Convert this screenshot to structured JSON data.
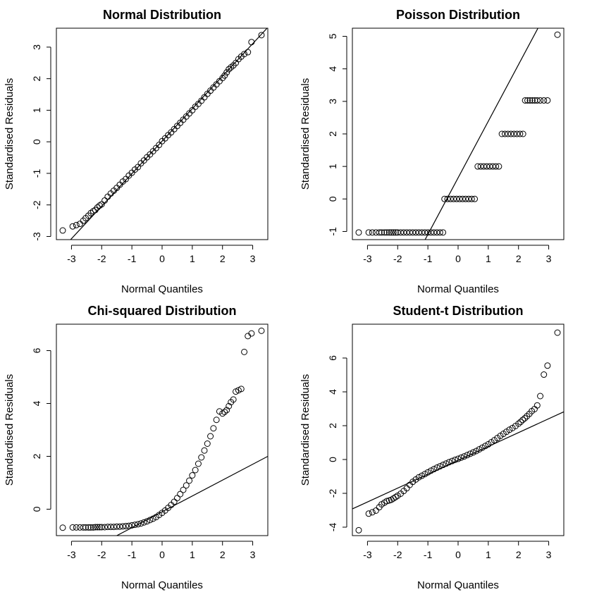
{
  "chart_data": [
    {
      "type": "scatter",
      "title": "Normal Distribution",
      "xlabel": "Normal Quantiles",
      "ylabel": "Standardised Residuals",
      "xlim": [
        -3.5,
        3.5
      ],
      "ylim": [
        -3.1,
        3.6
      ],
      "xticks": [
        -3,
        -2,
        -1,
        0,
        1,
        2,
        3
      ],
      "yticks": [
        -3,
        -2,
        -1,
        0,
        1,
        2,
        3
      ],
      "legend": "none",
      "reference_line": {
        "intercept": 0.02,
        "slope": 1.03
      },
      "series": [
        {
          "x": [
            -3.29,
            -2.96,
            -2.84,
            -2.72,
            -2.61,
            -2.53,
            -2.44,
            -2.36,
            -2.28,
            -2.21,
            -2.14,
            -2.07,
            -2.0,
            -1.9,
            -1.8,
            -1.7,
            -1.6,
            -1.5,
            -1.4,
            -1.3,
            -1.2,
            -1.1,
            -1.0,
            -0.9,
            -0.8,
            -0.7,
            -0.6,
            -0.5,
            -0.4,
            -0.3,
            -0.2,
            -0.1,
            0.0,
            0.1,
            0.2,
            0.3,
            0.4,
            0.5,
            0.6,
            0.7,
            0.8,
            0.9,
            1.0,
            1.1,
            1.2,
            1.3,
            1.4,
            1.5,
            1.6,
            1.7,
            1.8,
            1.9,
            2.0,
            2.07,
            2.14,
            2.21,
            2.28,
            2.36,
            2.44,
            2.53,
            2.62,
            2.72,
            2.84,
            2.96,
            3.29
          ],
          "y": [
            -2.81,
            -2.68,
            -2.64,
            -2.6,
            -2.5,
            -2.42,
            -2.34,
            -2.26,
            -2.2,
            -2.16,
            -2.08,
            -2.02,
            -1.98,
            -1.86,
            -1.74,
            -1.64,
            -1.55,
            -1.46,
            -1.36,
            -1.26,
            -1.18,
            -1.07,
            -0.98,
            -0.88,
            -0.8,
            -0.68,
            -0.59,
            -0.49,
            -0.4,
            -0.3,
            -0.2,
            -0.1,
            0.02,
            0.11,
            0.21,
            0.3,
            0.4,
            0.5,
            0.6,
            0.7,
            0.8,
            0.9,
            1.0,
            1.11,
            1.2,
            1.3,
            1.41,
            1.52,
            1.62,
            1.72,
            1.82,
            1.92,
            2.02,
            2.1,
            2.2,
            2.3,
            2.36,
            2.42,
            2.5,
            2.62,
            2.7,
            2.78,
            2.84,
            3.16,
            3.38
          ]
        }
      ]
    },
    {
      "type": "scatter",
      "title": "Poisson Distribution",
      "xlabel": "Normal Quantiles",
      "ylabel": "Standardised Residuals",
      "xlim": [
        -3.5,
        3.5
      ],
      "ylim": [
        -1.25,
        5.25
      ],
      "xticks": [
        -3,
        -2,
        -1,
        0,
        1,
        2,
        3
      ],
      "yticks": [
        -1,
        0,
        1,
        2,
        3,
        4,
        5
      ],
      "legend": "none",
      "reference_line": {
        "intercept": 0.65,
        "slope": 1.74
      },
      "series": [
        {
          "x": [
            -3.29,
            -2.96,
            -2.84,
            -2.72,
            -2.61,
            -2.53,
            -2.44,
            -2.36,
            -2.28,
            -2.21,
            -2.14,
            -2.07,
            -2.0,
            -1.9,
            -1.8,
            -1.7,
            -1.6,
            -1.5,
            -1.4,
            -1.3,
            -1.2,
            -1.1,
            -1.0,
            -0.9,
            -0.8,
            -0.7,
            -0.6,
            -0.5,
            -0.45,
            -0.35,
            -0.25,
            -0.15,
            -0.05,
            0.05,
            0.15,
            0.25,
            0.35,
            0.45,
            0.55,
            0.65,
            0.75,
            0.85,
            0.95,
            1.05,
            1.15,
            1.25,
            1.35,
            1.45,
            1.55,
            1.65,
            1.75,
            1.85,
            1.95,
            2.05,
            2.15,
            2.22,
            2.3,
            2.38,
            2.46,
            2.54,
            2.62,
            2.72,
            2.84,
            2.96,
            3.29
          ],
          "y": [
            -1.03,
            -1.03,
            -1.03,
            -1.03,
            -1.03,
            -1.03,
            -1.03,
            -1.03,
            -1.03,
            -1.03,
            -1.03,
            -1.03,
            -1.03,
            -1.03,
            -1.03,
            -1.03,
            -1.03,
            -1.03,
            -1.03,
            -1.03,
            -1.03,
            -1.03,
            -1.03,
            -1.03,
            -1.03,
            -1.03,
            -1.03,
            -1.03,
            0.0,
            0.0,
            0.0,
            0.0,
            0.0,
            0.0,
            0.0,
            0.0,
            0.0,
            0.0,
            0.0,
            1.0,
            1.0,
            1.0,
            1.0,
            1.0,
            1.0,
            1.0,
            1.0,
            2.0,
            2.0,
            2.0,
            2.0,
            2.0,
            2.0,
            2.0,
            2.0,
            3.03,
            3.03,
            3.03,
            3.03,
            3.03,
            3.03,
            3.03,
            3.03,
            3.03,
            5.05
          ]
        }
      ]
    },
    {
      "type": "scatter",
      "title": "Chi-squared Distribution",
      "xlabel": "Normal Quantiles",
      "ylabel": "Standardised Residuals",
      "xlim": [
        -3.5,
        3.5
      ],
      "ylim": [
        -1.0,
        7.0
      ],
      "xticks": [
        -3,
        -2,
        -1,
        0,
        1,
        2,
        3
      ],
      "yticks": [
        0,
        2,
        4,
        6
      ],
      "legend": "none",
      "reference_line": {
        "intercept": -0.1,
        "slope": 0.6
      },
      "series": [
        {
          "x": [
            -3.29,
            -2.96,
            -2.84,
            -2.72,
            -2.61,
            -2.53,
            -2.44,
            -2.36,
            -2.28,
            -2.21,
            -2.14,
            -2.07,
            -2.0,
            -1.9,
            -1.8,
            -1.7,
            -1.6,
            -1.5,
            -1.4,
            -1.3,
            -1.2,
            -1.1,
            -1.0,
            -0.9,
            -0.8,
            -0.7,
            -0.6,
            -0.5,
            -0.4,
            -0.3,
            -0.2,
            -0.1,
            0.0,
            0.1,
            0.2,
            0.3,
            0.4,
            0.5,
            0.6,
            0.7,
            0.8,
            0.9,
            1.0,
            1.1,
            1.2,
            1.3,
            1.4,
            1.5,
            1.6,
            1.7,
            1.8,
            1.9,
            2.0,
            2.07,
            2.14,
            2.21,
            2.28,
            2.36,
            2.44,
            2.53,
            2.62,
            2.72,
            2.84,
            2.96,
            3.29
          ],
          "y": [
            -0.7,
            -0.69,
            -0.69,
            -0.69,
            -0.69,
            -0.69,
            -0.69,
            -0.69,
            -0.69,
            -0.68,
            -0.68,
            -0.68,
            -0.68,
            -0.68,
            -0.67,
            -0.67,
            -0.67,
            -0.66,
            -0.66,
            -0.65,
            -0.64,
            -0.63,
            -0.61,
            -0.59,
            -0.57,
            -0.54,
            -0.5,
            -0.46,
            -0.41,
            -0.36,
            -0.3,
            -0.22,
            -0.14,
            -0.05,
            0.05,
            0.16,
            0.28,
            0.42,
            0.57,
            0.73,
            0.9,
            1.08,
            1.28,
            1.48,
            1.72,
            1.96,
            2.22,
            2.48,
            2.76,
            3.06,
            3.38,
            3.7,
            3.62,
            3.68,
            3.75,
            3.9,
            4.05,
            4.15,
            4.45,
            4.5,
            4.55,
            5.95,
            6.55,
            6.65,
            6.75
          ]
        }
      ]
    },
    {
      "type": "scatter",
      "title": "Student-t Distribution",
      "xlabel": "Normal Quantiles",
      "ylabel": "Standardised Residuals",
      "xlim": [
        -3.5,
        3.5
      ],
      "ylim": [
        -4.5,
        8.0
      ],
      "xticks": [
        -3,
        -2,
        -1,
        0,
        1,
        2,
        3
      ],
      "yticks": [
        -4,
        -2,
        0,
        2,
        4,
        6
      ],
      "legend": "none",
      "reference_line": {
        "intercept": -0.05,
        "slope": 0.82
      },
      "series": [
        {
          "x": [
            -3.29,
            -2.96,
            -2.84,
            -2.72,
            -2.61,
            -2.53,
            -2.44,
            -2.36,
            -2.28,
            -2.21,
            -2.14,
            -2.07,
            -2.0,
            -1.9,
            -1.8,
            -1.7,
            -1.6,
            -1.5,
            -1.4,
            -1.3,
            -1.2,
            -1.1,
            -1.0,
            -0.9,
            -0.8,
            -0.7,
            -0.6,
            -0.5,
            -0.4,
            -0.3,
            -0.2,
            -0.1,
            0.0,
            0.1,
            0.2,
            0.3,
            0.4,
            0.5,
            0.6,
            0.7,
            0.8,
            0.9,
            1.0,
            1.1,
            1.2,
            1.3,
            1.4,
            1.5,
            1.6,
            1.7,
            1.8,
            1.9,
            2.0,
            2.07,
            2.14,
            2.21,
            2.28,
            2.36,
            2.44,
            2.53,
            2.62,
            2.72,
            2.84,
            2.96,
            3.29
          ],
          "y": [
            -4.18,
            -3.2,
            -3.12,
            -3.02,
            -2.82,
            -2.65,
            -2.55,
            -2.46,
            -2.42,
            -2.38,
            -2.3,
            -2.22,
            -2.14,
            -2.02,
            -1.86,
            -1.7,
            -1.5,
            -1.32,
            -1.18,
            -1.05,
            -0.96,
            -0.86,
            -0.76,
            -0.66,
            -0.57,
            -0.48,
            -0.4,
            -0.32,
            -0.24,
            -0.16,
            -0.09,
            -0.02,
            0.04,
            0.11,
            0.18,
            0.26,
            0.34,
            0.42,
            0.5,
            0.6,
            0.7,
            0.8,
            0.9,
            1.02,
            1.14,
            1.27,
            1.4,
            1.52,
            1.64,
            1.76,
            1.86,
            1.98,
            2.12,
            2.22,
            2.34,
            2.44,
            2.56,
            2.7,
            2.86,
            2.98,
            3.2,
            3.75,
            5.02,
            5.55,
            7.5
          ]
        }
      ]
    }
  ]
}
